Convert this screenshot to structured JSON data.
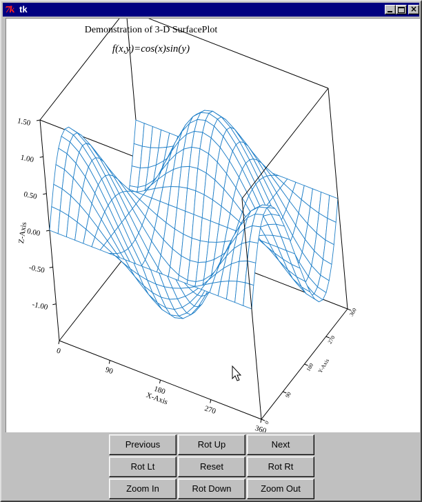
{
  "window": {
    "title": "tk",
    "icon": "tk-logo-icon"
  },
  "titlebar_buttons": [
    "minimize-icon",
    "maximize-icon",
    "close-icon"
  ],
  "chart_data": {
    "type": "surface",
    "title": "Demonstration of 3-D SurfacePlot",
    "subtitle": "f(x,y)=cos(x)sin(y)",
    "xlabel": "X-Axis",
    "ylabel": "Y-Axis",
    "zlabel": "Z-Axis",
    "xlim": [
      0,
      360
    ],
    "ylim": [
      0,
      360
    ],
    "zlim": [
      -1.5,
      1.5
    ],
    "x_ticks": [
      "0",
      "90",
      "180",
      "270",
      "360"
    ],
    "y_ticks": [
      "0",
      "90",
      "180",
      "270",
      "360"
    ],
    "z_ticks": [
      "1.50",
      "1.00",
      "0.50",
      "0.00",
      "-0.50",
      "-1.00"
    ],
    "function": "cos(x)*sin(y)",
    "grid_step_degrees": 15,
    "colors": {
      "top": "#1f7fc8",
      "bottom": "#f0a020",
      "box": "#000000"
    }
  },
  "buttons": {
    "previous": "Previous",
    "rot_up": "Rot Up",
    "next": "Next",
    "rot_lt": "Rot Lt",
    "reset": "Reset",
    "rot_rt": "Rot Rt",
    "zoom_in": "Zoom In",
    "rot_down": "Rot Down",
    "zoom_out": "Zoom Out"
  }
}
